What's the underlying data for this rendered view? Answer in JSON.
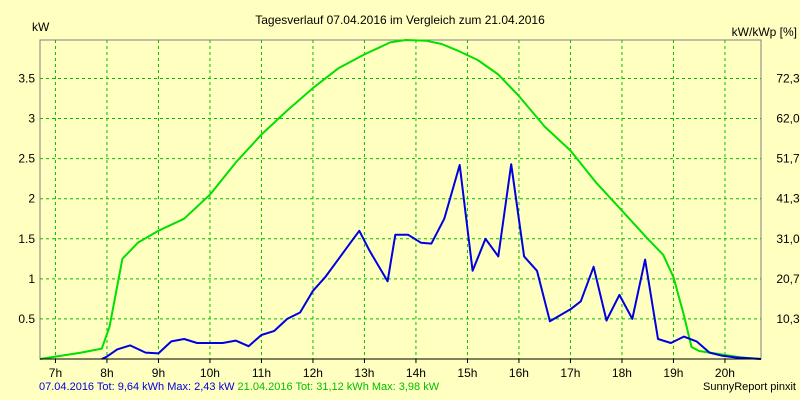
{
  "chart_data": {
    "type": "line",
    "title": "Tagesverlauf 07.04.2016 im Vergleich zum 21.04.2016",
    "ylabel_left": "kW",
    "ylabel_right": "kW/kWp [%]",
    "xlim": [
      6.7,
      20.7
    ],
    "ylim": [
      0,
      3.98
    ],
    "x_ticks": [
      {
        "x": 7,
        "label": "7h"
      },
      {
        "x": 8,
        "label": "8h"
      },
      {
        "x": 9,
        "label": "9h"
      },
      {
        "x": 10,
        "label": "10h"
      },
      {
        "x": 11,
        "label": "11h"
      },
      {
        "x": 12,
        "label": "12h"
      },
      {
        "x": 13,
        "label": "13h"
      },
      {
        "x": 14,
        "label": "14h"
      },
      {
        "x": 15,
        "label": "15h"
      },
      {
        "x": 16,
        "label": "16h"
      },
      {
        "x": 17,
        "label": "17h"
      },
      {
        "x": 18,
        "label": "18h"
      },
      {
        "x": 19,
        "label": "19h"
      },
      {
        "x": 20,
        "label": "20h"
      }
    ],
    "y_ticks_left": [
      {
        "y": 0.5,
        "label": "0.5"
      },
      {
        "y": 1,
        "label": "1"
      },
      {
        "y": 1.5,
        "label": "1.5"
      },
      {
        "y": 2,
        "label": "2"
      },
      {
        "y": 2.5,
        "label": "2.5"
      },
      {
        "y": 3,
        "label": "3"
      },
      {
        "y": 3.5,
        "label": "3.5"
      }
    ],
    "y_ticks_right": [
      {
        "y": 0.5,
        "label": "10,3"
      },
      {
        "y": 1,
        "label": "20,7"
      },
      {
        "y": 1.5,
        "label": "31,0"
      },
      {
        "y": 2,
        "label": "41,3"
      },
      {
        "y": 2.5,
        "label": "51,7"
      },
      {
        "y": 3,
        "label": "62,0"
      },
      {
        "y": 3.5,
        "label": "72,3"
      }
    ],
    "grid": true,
    "series": [
      {
        "color": "#00e000",
        "points": [
          [
            6.7,
            0
          ],
          [
            7,
            0.03
          ],
          [
            7.5,
            0.08
          ],
          [
            7.9,
            0.13
          ],
          [
            8.05,
            0.4
          ],
          [
            8.3,
            1.25
          ],
          [
            8.6,
            1.45
          ],
          [
            9.0,
            1.6
          ],
          [
            9.5,
            1.75
          ],
          [
            10.0,
            2.05
          ],
          [
            10.5,
            2.45
          ],
          [
            11.0,
            2.8
          ],
          [
            11.5,
            3.1
          ],
          [
            12.0,
            3.38
          ],
          [
            12.5,
            3.63
          ],
          [
            13.0,
            3.8
          ],
          [
            13.5,
            3.95
          ],
          [
            13.8,
            3.98
          ],
          [
            14.2,
            3.97
          ],
          [
            14.5,
            3.93
          ],
          [
            14.8,
            3.85
          ],
          [
            15.2,
            3.73
          ],
          [
            15.6,
            3.55
          ],
          [
            16.0,
            3.28
          ],
          [
            16.5,
            2.9
          ],
          [
            17.0,
            2.6
          ],
          [
            17.5,
            2.2
          ],
          [
            18.0,
            1.85
          ],
          [
            18.5,
            1.5
          ],
          [
            18.8,
            1.3
          ],
          [
            19.0,
            1.02
          ],
          [
            19.2,
            0.55
          ],
          [
            19.35,
            0.15
          ],
          [
            19.5,
            0.1
          ],
          [
            19.8,
            0.07
          ],
          [
            20.0,
            0.05
          ],
          [
            20.3,
            0.02
          ],
          [
            20.7,
            0
          ]
        ]
      },
      {
        "color": "#0000e0",
        "points": [
          [
            7.9,
            0
          ],
          [
            8.0,
            0.03
          ],
          [
            8.2,
            0.12
          ],
          [
            8.45,
            0.17
          ],
          [
            8.75,
            0.08
          ],
          [
            9.0,
            0.07
          ],
          [
            9.25,
            0.22
          ],
          [
            9.5,
            0.25
          ],
          [
            9.75,
            0.2
          ],
          [
            10.0,
            0.2
          ],
          [
            10.25,
            0.2
          ],
          [
            10.5,
            0.23
          ],
          [
            10.75,
            0.16
          ],
          [
            11.0,
            0.3
          ],
          [
            11.25,
            0.35
          ],
          [
            11.5,
            0.5
          ],
          [
            11.75,
            0.58
          ],
          [
            12.0,
            0.85
          ],
          [
            12.25,
            1.03
          ],
          [
            12.5,
            1.25
          ],
          [
            12.75,
            1.47
          ],
          [
            12.9,
            1.6
          ],
          [
            13.1,
            1.35
          ],
          [
            13.45,
            0.97
          ],
          [
            13.6,
            1.55
          ],
          [
            13.85,
            1.55
          ],
          [
            14.1,
            1.45
          ],
          [
            14.3,
            1.44
          ],
          [
            14.55,
            1.75
          ],
          [
            14.85,
            2.42
          ],
          [
            15.1,
            1.1
          ],
          [
            15.35,
            1.5
          ],
          [
            15.6,
            1.28
          ],
          [
            15.85,
            2.43
          ],
          [
            16.1,
            1.28
          ],
          [
            16.35,
            1.1
          ],
          [
            16.6,
            0.47
          ],
          [
            17.0,
            0.62
          ],
          [
            17.2,
            0.72
          ],
          [
            17.45,
            1.15
          ],
          [
            17.7,
            0.48
          ],
          [
            17.95,
            0.8
          ],
          [
            18.2,
            0.5
          ],
          [
            18.45,
            1.24
          ],
          [
            18.7,
            0.25
          ],
          [
            18.95,
            0.2
          ],
          [
            19.2,
            0.28
          ],
          [
            19.45,
            0.22
          ],
          [
            19.7,
            0.08
          ],
          [
            19.95,
            0.04
          ],
          [
            20.2,
            0.02
          ],
          [
            20.7,
            0
          ]
        ]
      }
    ],
    "footer": [
      {
        "text": "07.04.2016 Tot: 9,64 kWh Max: 2,43 kW",
        "color": "#0000e0"
      },
      {
        "text": "21.04.2016 Tot: 31,12 kWh Max: 3,98 kW",
        "color": "#00c000"
      }
    ],
    "credit": "SunnyReport pinxit"
  }
}
